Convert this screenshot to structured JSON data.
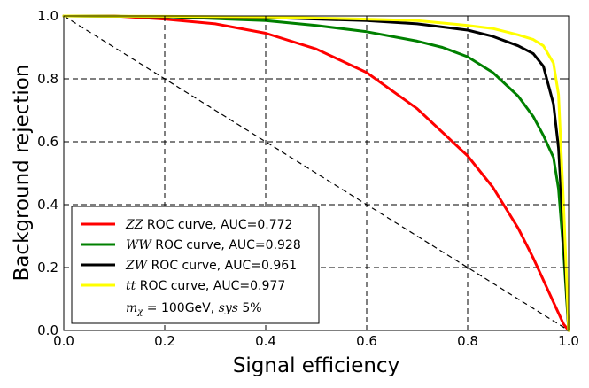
{
  "chart_data": {
    "type": "line",
    "title": "",
    "xlabel": "Signal efficiency",
    "ylabel": "Background rejection",
    "xlim": [
      0.0,
      1.0
    ],
    "ylim": [
      0.0,
      1.0
    ],
    "xticks": [
      "0.0",
      "0.2",
      "0.4",
      "0.6",
      "0.8",
      "1.0"
    ],
    "yticks": [
      "0.0",
      "0.2",
      "0.4",
      "0.6",
      "0.8",
      "1.0"
    ],
    "grid": true,
    "legend_position": "bottom-left",
    "series": [
      {
        "name": "ZZ",
        "label_math": "ZZ",
        "label_text": " ROC curve, AUC=0.772",
        "color": "#ff0000",
        "x": [
          0.0,
          0.1,
          0.2,
          0.3,
          0.4,
          0.5,
          0.6,
          0.7,
          0.8,
          0.85,
          0.9,
          0.93,
          0.95,
          0.97,
          0.99,
          1.0
        ],
        "y": [
          1.0,
          1.0,
          0.99,
          0.975,
          0.945,
          0.895,
          0.82,
          0.705,
          0.555,
          0.455,
          0.325,
          0.23,
          0.16,
          0.09,
          0.02,
          0.0
        ]
      },
      {
        "name": "WW",
        "label_math": "WW",
        "label_text": " ROC curve, AUC=0.928",
        "color": "#008000",
        "x": [
          0.0,
          0.2,
          0.4,
          0.5,
          0.6,
          0.7,
          0.75,
          0.8,
          0.85,
          0.9,
          0.93,
          0.95,
          0.97,
          0.98,
          0.99,
          1.0
        ],
        "y": [
          1.0,
          0.998,
          0.985,
          0.97,
          0.95,
          0.92,
          0.9,
          0.87,
          0.82,
          0.745,
          0.68,
          0.62,
          0.55,
          0.45,
          0.25,
          0.0
        ]
      },
      {
        "name": "ZW",
        "label_math": "ZW",
        "label_text": " ROC curve, AUC=0.961",
        "color": "#000000",
        "x": [
          0.0,
          0.2,
          0.4,
          0.6,
          0.7,
          0.8,
          0.85,
          0.9,
          0.93,
          0.95,
          0.97,
          0.98,
          0.99,
          1.0
        ],
        "y": [
          1.0,
          0.998,
          0.995,
          0.985,
          0.975,
          0.955,
          0.935,
          0.905,
          0.88,
          0.84,
          0.72,
          0.58,
          0.3,
          0.0
        ]
      },
      {
        "name": "tt",
        "label_math": "tt",
        "label_text": " ROC curve, AUC=0.977",
        "color": "#ffff00",
        "x": [
          0.0,
          0.2,
          0.4,
          0.6,
          0.7,
          0.8,
          0.85,
          0.9,
          0.93,
          0.95,
          0.97,
          0.98,
          0.99,
          1.0
        ],
        "y": [
          1.0,
          0.999,
          0.997,
          0.99,
          0.985,
          0.97,
          0.96,
          0.94,
          0.925,
          0.905,
          0.85,
          0.75,
          0.4,
          0.0
        ]
      },
      {
        "name": "random",
        "color": "#000000",
        "dashed": true,
        "x": [
          0.0,
          1.0
        ],
        "y": [
          1.0,
          0.0
        ]
      }
    ],
    "annotation": {
      "math_part": "m",
      "subscript": "χ",
      "text_part": " = 100GeV, ",
      "math_part2": "sys",
      "text_part2": " 5%"
    }
  }
}
